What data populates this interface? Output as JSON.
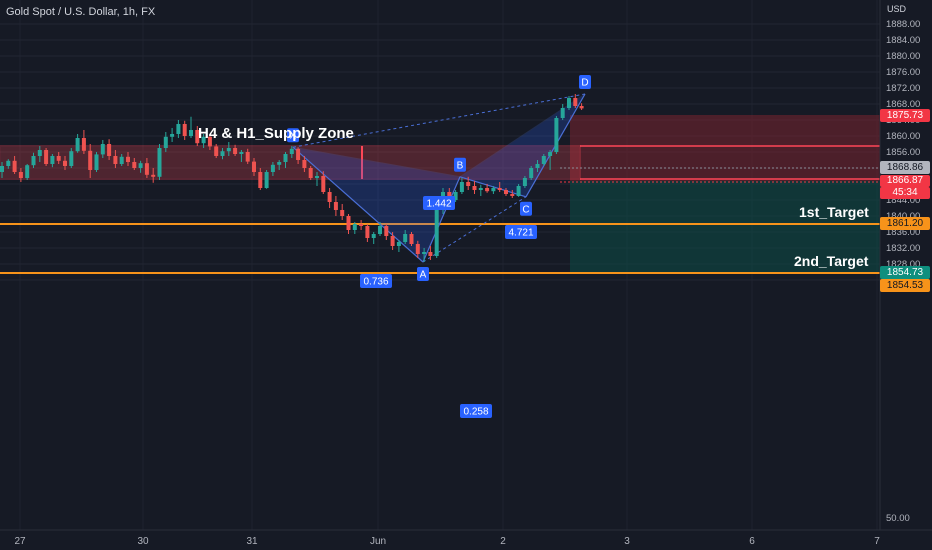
{
  "header": {
    "symbol_title": "Gold Spot / U.S. Dollar, 1h, FX",
    "currency": "USD"
  },
  "chart_data": {
    "type": "candlestick",
    "ylim": [
      1822.5,
      1890
    ],
    "y_ticks": [
      1824,
      1828,
      1832,
      1836,
      1840,
      1844,
      1848,
      1852,
      1856,
      1860,
      1864,
      1868,
      1872,
      1876,
      1880,
      1884,
      1888
    ],
    "x_ticks": [
      "27",
      "30",
      "31",
      "Jun",
      "2",
      "3",
      "6",
      "7"
    ],
    "volume_tick": "50.00",
    "price_labels": {
      "supply_top": "1875.73",
      "last": "1868.86",
      "current": "1866.87",
      "countdown": "45:34",
      "target1": "1861.20",
      "target2_a": "1854.73",
      "target2_b": "1854.53"
    },
    "supply_zone": {
      "label": "H4 & H1_Supply Zone",
      "top": 1871.5,
      "bottom": 1865.6
    },
    "targets": [
      {
        "label": "1st_Target",
        "price": 1861.2
      },
      {
        "label": "2nd_Target",
        "price": 1854.6
      }
    ],
    "pattern": {
      "points": [
        {
          "label": "X",
          "price": 1857.2
        },
        {
          "label": "A",
          "price": 1828.5
        },
        {
          "label": "B",
          "price": 1849.8
        },
        {
          "label": "C",
          "price": 1844.8
        },
        {
          "label": "D",
          "price": 1870.5
        }
      ],
      "ratios": [
        "1.442",
        "0.736",
        "4.721",
        "0.258"
      ]
    },
    "candles": [
      [
        1851.0,
        1853.5,
        1849.5,
        1852.5
      ],
      [
        1852.5,
        1854.2,
        1851.8,
        1853.8
      ],
      [
        1853.8,
        1855.0,
        1850.5,
        1851.0
      ],
      [
        1851.0,
        1852.0,
        1848.5,
        1849.5
      ],
      [
        1849.5,
        1853.0,
        1849.0,
        1852.7
      ],
      [
        1852.7,
        1855.8,
        1852.0,
        1855.0
      ],
      [
        1855.0,
        1857.5,
        1853.5,
        1856.5
      ],
      [
        1856.5,
        1857.0,
        1852.5,
        1853.0
      ],
      [
        1853.0,
        1855.5,
        1852.2,
        1855.0
      ],
      [
        1855.0,
        1856.0,
        1853.0,
        1853.8
      ],
      [
        1853.8,
        1855.0,
        1851.5,
        1852.5
      ],
      [
        1852.5,
        1857.0,
        1852.0,
        1856.2
      ],
      [
        1856.2,
        1860.5,
        1855.8,
        1859.5
      ],
      [
        1859.5,
        1861.5,
        1855.5,
        1856.3
      ],
      [
        1856.3,
        1858.0,
        1849.5,
        1851.5
      ],
      [
        1851.5,
        1856.0,
        1851.0,
        1855.4
      ],
      [
        1855.4,
        1859.0,
        1854.5,
        1858.0
      ],
      [
        1858.0,
        1859.2,
        1854.0,
        1855.0
      ],
      [
        1855.0,
        1856.5,
        1852.0,
        1853.0
      ],
      [
        1853.0,
        1855.5,
        1852.5,
        1854.8
      ],
      [
        1854.8,
        1856.0,
        1852.5,
        1853.5
      ],
      [
        1853.5,
        1854.5,
        1851.5,
        1852.0
      ],
      [
        1852.0,
        1853.8,
        1850.8,
        1853.2
      ],
      [
        1853.2,
        1854.5,
        1849.5,
        1850.3
      ],
      [
        1850.3,
        1852.0,
        1848.3,
        1849.8
      ],
      [
        1849.8,
        1858.0,
        1849.0,
        1857.0
      ],
      [
        1857.0,
        1861.0,
        1856.0,
        1859.8
      ],
      [
        1859.8,
        1862.0,
        1858.5,
        1860.5
      ],
      [
        1860.5,
        1864.0,
        1859.5,
        1863.0
      ],
      [
        1863.0,
        1863.8,
        1859.0,
        1860.0
      ],
      [
        1860.0,
        1864.8,
        1859.5,
        1861.5
      ],
      [
        1861.5,
        1862.5,
        1857.5,
        1858.2
      ],
      [
        1858.2,
        1860.5,
        1857.0,
        1859.8
      ],
      [
        1859.8,
        1860.2,
        1856.5,
        1857.4
      ],
      [
        1857.4,
        1858.0,
        1854.5,
        1855.0
      ],
      [
        1855.0,
        1857.0,
        1854.2,
        1856.2
      ],
      [
        1856.2,
        1858.5,
        1855.0,
        1857.0
      ],
      [
        1857.0,
        1857.8,
        1855.0,
        1855.5
      ],
      [
        1855.5,
        1856.5,
        1853.5,
        1856.0
      ],
      [
        1856.0,
        1856.8,
        1853.0,
        1853.6
      ],
      [
        1853.6,
        1854.5,
        1850.0,
        1851.0
      ],
      [
        1851.0,
        1852.0,
        1846.5,
        1847.0
      ],
      [
        1847.0,
        1851.5,
        1846.8,
        1851.0
      ],
      [
        1851.0,
        1853.5,
        1850.0,
        1852.8
      ],
      [
        1852.8,
        1854.0,
        1851.5,
        1853.5
      ],
      [
        1853.5,
        1856.0,
        1852.0,
        1855.5
      ],
      [
        1855.5,
        1857.5,
        1854.5,
        1856.8
      ],
      [
        1856.8,
        1857.2,
        1853.0,
        1854.0
      ],
      [
        1854.0,
        1855.0,
        1851.0,
        1852.0
      ],
      [
        1852.0,
        1852.5,
        1849.0,
        1849.5
      ],
      [
        1849.5,
        1851.0,
        1847.5,
        1850.0
      ],
      [
        1850.0,
        1851.2,
        1845.5,
        1846.0
      ],
      [
        1846.0,
        1847.0,
        1842.0,
        1843.5
      ],
      [
        1843.5,
        1845.0,
        1840.0,
        1841.5
      ],
      [
        1841.5,
        1843.0,
        1839.0,
        1840.0
      ],
      [
        1840.0,
        1840.5,
        1835.5,
        1836.5
      ],
      [
        1836.5,
        1838.5,
        1835.5,
        1838.0
      ],
      [
        1838.0,
        1839.0,
        1836.5,
        1837.5
      ],
      [
        1837.5,
        1838.0,
        1833.5,
        1834.5
      ],
      [
        1834.5,
        1836.0,
        1833.0,
        1835.5
      ],
      [
        1835.5,
        1838.5,
        1835.0,
        1837.5
      ],
      [
        1837.5,
        1838.0,
        1834.0,
        1835.0
      ],
      [
        1835.0,
        1836.0,
        1831.5,
        1832.5
      ],
      [
        1832.5,
        1834.0,
        1831.0,
        1833.5
      ],
      [
        1833.5,
        1836.5,
        1833.0,
        1835.5
      ],
      [
        1835.5,
        1836.0,
        1832.5,
        1833.0
      ],
      [
        1833.0,
        1833.8,
        1829.5,
        1830.5
      ],
      [
        1830.5,
        1832.0,
        1828.5,
        1831.0
      ],
      [
        1831.0,
        1832.5,
        1829.0,
        1830.0
      ],
      [
        1830.0,
        1842.0,
        1829.5,
        1841.5
      ],
      [
        1841.5,
        1847.0,
        1840.5,
        1846.0
      ],
      [
        1846.0,
        1847.0,
        1843.0,
        1844.0
      ],
      [
        1844.0,
        1846.5,
        1843.5,
        1846.0
      ],
      [
        1846.0,
        1849.5,
        1845.5,
        1848.5
      ],
      [
        1848.5,
        1849.8,
        1846.5,
        1847.5
      ],
      [
        1847.5,
        1848.8,
        1845.5,
        1846.5
      ],
      [
        1846.5,
        1847.8,
        1845.0,
        1847.0
      ],
      [
        1847.0,
        1848.0,
        1845.8,
        1846.2
      ],
      [
        1846.2,
        1847.5,
        1845.5,
        1847.0
      ],
      [
        1847.0,
        1848.5,
        1846.0,
        1846.5
      ],
      [
        1846.5,
        1847.0,
        1845.0,
        1845.5
      ],
      [
        1845.5,
        1846.5,
        1844.5,
        1845.0
      ],
      [
        1845.0,
        1848.0,
        1844.8,
        1847.5
      ],
      [
        1847.5,
        1850.0,
        1847.0,
        1849.5
      ],
      [
        1849.5,
        1852.5,
        1849.0,
        1852.0
      ],
      [
        1852.0,
        1854.0,
        1851.0,
        1853.0
      ],
      [
        1853.0,
        1855.5,
        1852.5,
        1855.0
      ],
      [
        1855.0,
        1856.5,
        1851.5,
        1856.0
      ],
      [
        1856.0,
        1865.0,
        1855.5,
        1864.5
      ],
      [
        1864.5,
        1868.0,
        1864.0,
        1867.0
      ],
      [
        1867.0,
        1870.0,
        1866.5,
        1869.5
      ],
      [
        1869.5,
        1870.5,
        1867.0,
        1867.5
      ],
      [
        1867.5,
        1868.2,
        1866.5,
        1866.9
      ]
    ]
  }
}
